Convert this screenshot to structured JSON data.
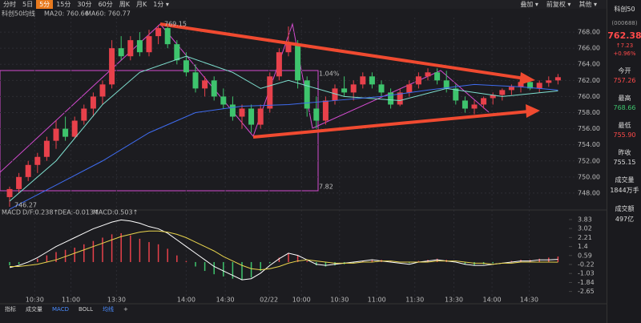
{
  "toolbar": {
    "tabs": [
      "分时",
      "5日",
      "5分",
      "15分",
      "30分",
      "60分",
      "周K",
      "月K",
      "1分 ▾"
    ],
    "right": [
      "叠加 ▾",
      "前复权 ▾",
      "其他 ▾"
    ]
  },
  "chart_data": {
    "type": "candlestick",
    "title": "科创50",
    "ma_title": "均线",
    "ma_legend": [
      {
        "label": "MA20: 760.66",
        "color": "#7fe0d0"
      },
      {
        "label": "MA60: 760.77",
        "color": "#3f6cf0"
      }
    ],
    "up_color": "#e8414b",
    "down_color": "#3ec46d",
    "ylim": [
      746.2,
      769.8
    ],
    "yticks": [
      {
        "value": 748,
        "label": "748.00"
      },
      {
        "value": 750,
        "label": "750.00"
      },
      {
        "value": 752,
        "label": "752.00"
      },
      {
        "value": 754,
        "label": "754.00"
      },
      {
        "value": 756,
        "label": "756.00"
      },
      {
        "value": 758,
        "label": "758.00"
      },
      {
        "value": 760,
        "label": "760.00"
      },
      {
        "value": 762,
        "label": "762.00"
      },
      {
        "value": 764,
        "label": "764.00"
      },
      {
        "value": 766,
        "label": "766.00"
      },
      {
        "value": 768,
        "label": "768.00"
      }
    ],
    "xticks": [
      {
        "value": 2.7,
        "label": "10:30"
      },
      {
        "value": 6.6,
        "label": "11:00"
      },
      {
        "value": 11.5,
        "label": "13:30"
      },
      {
        "value": 19,
        "label": "14:00"
      },
      {
        "value": 23.2,
        "label": "14:30"
      },
      {
        "value": 27.9,
        "label": "02/22"
      },
      {
        "value": 31.4,
        "label": "10:00"
      },
      {
        "value": 35.5,
        "label": "10:30"
      },
      {
        "value": 39.5,
        "label": "11:00"
      },
      {
        "value": 43.6,
        "label": "11:30"
      },
      {
        "value": 47.8,
        "label": "13:30"
      },
      {
        "value": 51.9,
        "label": "14:00"
      },
      {
        "value": 55.9,
        "label": "14:30"
      }
    ],
    "candles": [
      [
        747.5,
        748.8,
        746.3,
        748.5
      ],
      [
        748.5,
        750.5,
        748,
        750
      ],
      [
        750,
        752,
        749.5,
        751.5
      ],
      [
        751.5,
        753,
        750.5,
        752.5
      ],
      [
        752.5,
        755,
        752,
        754.5
      ],
      [
        754.5,
        757,
        753.5,
        756
      ],
      [
        756,
        757.5,
        754.5,
        755
      ],
      [
        755,
        757.5,
        754.8,
        757
      ],
      [
        757,
        759,
        756.5,
        758.5
      ],
      [
        758.5,
        760.5,
        757.5,
        760
      ],
      [
        760,
        762,
        759,
        761.5
      ],
      [
        761.5,
        767,
        761,
        766
      ],
      [
        766,
        767.5,
        764.5,
        765
      ],
      [
        765,
        767.5,
        764.5,
        767
      ],
      [
        767,
        768,
        765,
        765.5
      ],
      [
        765.5,
        768.3,
        765,
        767.5
      ],
      [
        767.5,
        768.9,
        766.5,
        768.5
      ],
      [
        768.5,
        769,
        766,
        766.5
      ],
      [
        766.5,
        767,
        764,
        764.5
      ],
      [
        764.5,
        765.5,
        762.5,
        763
      ],
      [
        763,
        764,
        760.5,
        761
      ],
      [
        761,
        762.5,
        760,
        762
      ],
      [
        762,
        762.5,
        759.5,
        760
      ],
      [
        760,
        761,
        758.5,
        759
      ],
      [
        759,
        760,
        757,
        757.5
      ],
      [
        757.5,
        759,
        756,
        758.5
      ],
      [
        758.5,
        759,
        755.5,
        756.5
      ],
      [
        756.5,
        759,
        756,
        758.5
      ],
      [
        758.5,
        763,
        758,
        762.5
      ],
      [
        762.5,
        766,
        762,
        765.5
      ],
      [
        765.5,
        768.7,
        765,
        766.5
      ],
      [
        766.5,
        767,
        761,
        762
      ],
      [
        762,
        762.5,
        757.5,
        758.5
      ],
      [
        758.5,
        760,
        756,
        757
      ],
      [
        757,
        760,
        756.5,
        759.5
      ],
      [
        759.5,
        761.5,
        759,
        761
      ],
      [
        761,
        762.5,
        760,
        760.5
      ],
      [
        760.5,
        762,
        759.5,
        761.5
      ],
      [
        761.5,
        763,
        761,
        762.5
      ],
      [
        762.5,
        763,
        761,
        761.5
      ],
      [
        761.5,
        762,
        760,
        760.5
      ],
      [
        760.5,
        761,
        758.5,
        759
      ],
      [
        759,
        761,
        758.8,
        760.5
      ],
      [
        760.5,
        762,
        760,
        761.5
      ],
      [
        761.5,
        763,
        761,
        762.5
      ],
      [
        762.5,
        763.5,
        762,
        763
      ],
      [
        763,
        763.5,
        761.5,
        762
      ],
      [
        762,
        763.2,
        760.5,
        761
      ],
      [
        761,
        761.5,
        759,
        759.5
      ],
      [
        759.5,
        760,
        758,
        758.5
      ],
      [
        758.5,
        759.5,
        757.8,
        759
      ],
      [
        759,
        760,
        758.5,
        759.8
      ],
      [
        759.8,
        760.5,
        759,
        760.2
      ],
      [
        760.2,
        761,
        759.5,
        760.8
      ],
      [
        760.8,
        761.5,
        760.2,
        761.2
      ],
      [
        761.2,
        762,
        760.5,
        761.8
      ],
      [
        761.8,
        762.2,
        760.8,
        761
      ],
      [
        761,
        762,
        760.5,
        761.7
      ],
      [
        761.7,
        762.5,
        761.2,
        762
      ],
      [
        762,
        762.8,
        761.5,
        762.4
      ]
    ],
    "ma_lines": [
      {
        "color": "#7fe0d0",
        "x": [
          0,
          5,
          10,
          14,
          19,
          24,
          27,
          30,
          36,
          42,
          47,
          53,
          59
        ],
        "values": [
          747,
          752,
          759,
          763,
          765,
          763,
          761,
          762,
          760,
          759.5,
          761,
          760,
          760.7
        ]
      },
      {
        "color": "#3f6cf0",
        "x": [
          0,
          5,
          10,
          15,
          20,
          25,
          30,
          35,
          40,
          45,
          50,
          55,
          59
        ],
        "values": [
          746,
          749,
          752,
          755.5,
          758,
          758.8,
          759,
          759.5,
          760,
          760.8,
          761.5,
          761.2,
          760.8
        ]
      }
    ],
    "annotations": [
      "769.15",
      "746.27",
      "1.04%",
      "7.82"
    ],
    "macd": {
      "title": "MACD",
      "labels": [
        {
          "text": "D/F:0.238↑",
          "color": "#ffffff"
        },
        {
          "text": "DEA:-0.013↑",
          "color": "#e8d44d"
        },
        {
          "text": "MACD:0.503↑",
          "color": "#e85ab8"
        }
      ],
      "ylim": [
        -3.11,
        4.26
      ],
      "yticks": [
        3.83,
        3.02,
        2.21,
        1.4,
        0.59,
        -0.22,
        -1.03,
        -1.84,
        -2.65
      ],
      "hist": [
        -0.3,
        -0.2,
        0,
        0.3,
        0.6,
        0.9,
        1.1,
        1.3,
        1.6,
        1.9,
        2.2,
        2.5,
        2.6,
        2.4,
        2.1,
        1.8,
        1.6,
        1.2,
        0.6,
        0.1,
        -0.4,
        -0.8,
        -1.1,
        -1.3,
        -1.5,
        -1.6,
        -1.4,
        -0.8,
        -0.1,
        0.4,
        0.8,
        0.6,
        0.1,
        -0.3,
        -0.4,
        -0.3,
        -0.2,
        -0.1,
        0.1,
        0.2,
        0.2,
        0.1,
        0,
        -0.1,
        0.1,
        0.2,
        0.3,
        0.2,
        0,
        -0.2,
        -0.3,
        -0.2,
        -0.1,
        0,
        0.1,
        0.2,
        0.2,
        0.3,
        0.4,
        0.5
      ],
      "dif": [
        -0.5,
        -0.3,
        0,
        0.4,
        0.9,
        1.4,
        1.8,
        2.2,
        2.6,
        3,
        3.3,
        3.6,
        3.8,
        3.7,
        3.5,
        3.2,
        3,
        2.6,
        2,
        1.4,
        0.8,
        0.2,
        -0.4,
        -0.8,
        -1.2,
        -1.6,
        -1.5,
        -1,
        -0.3,
        0.3,
        0.8,
        0.6,
        0.2,
        -0.2,
        -0.3,
        -0.2,
        -0.1,
        0,
        0.1,
        0.2,
        0.1,
        0,
        -0.1,
        -0.2,
        0,
        0.1,
        0.2,
        0.1,
        0,
        -0.2,
        -0.3,
        -0.3,
        -0.2,
        -0.1,
        0,
        0.1,
        0.1,
        0.2,
        0.2,
        0.24
      ],
      "dea": [
        -0.4,
        -0.4,
        -0.3,
        -0.2,
        0,
        0.2,
        0.5,
        0.8,
        1.1,
        1.4,
        1.7,
        2,
        2.3,
        2.5,
        2.7,
        2.8,
        2.8,
        2.7,
        2.5,
        2.2,
        1.8,
        1.4,
        1,
        0.5,
        0.1,
        -0.3,
        -0.6,
        -0.7,
        -0.6,
        -0.4,
        -0.1,
        0.1,
        0.2,
        0.1,
        0,
        -0.1,
        -0.1,
        -0.1,
        0,
        0,
        0.1,
        0.1,
        0,
        0,
        0,
        0,
        0.1,
        0.1,
        0.1,
        0,
        -0.1,
        -0.1,
        -0.2,
        -0.1,
        -0.1,
        0,
        0,
        0,
        0,
        -0.01
      ]
    }
  },
  "bottom_tabs": [
    "指标",
    "成交量",
    "MACD",
    "BOLL",
    "均线",
    "+"
  ],
  "sidebar": {
    "name": "科创50",
    "code": "(000688)",
    "price": "762.38",
    "change": "↑7.23",
    "pct": "+0.96%",
    "stats": [
      {
        "label": "今开",
        "value": "757.26"
      },
      {
        "label": "最高",
        "value": "768.66"
      },
      {
        "label": "最低",
        "value": "755.90"
      },
      {
        "label": "昨收",
        "value": "755.15"
      },
      {
        "label": "成交量",
        "value": "1844万手"
      },
      {
        "label": "成交额",
        "value": "497亿"
      }
    ]
  }
}
